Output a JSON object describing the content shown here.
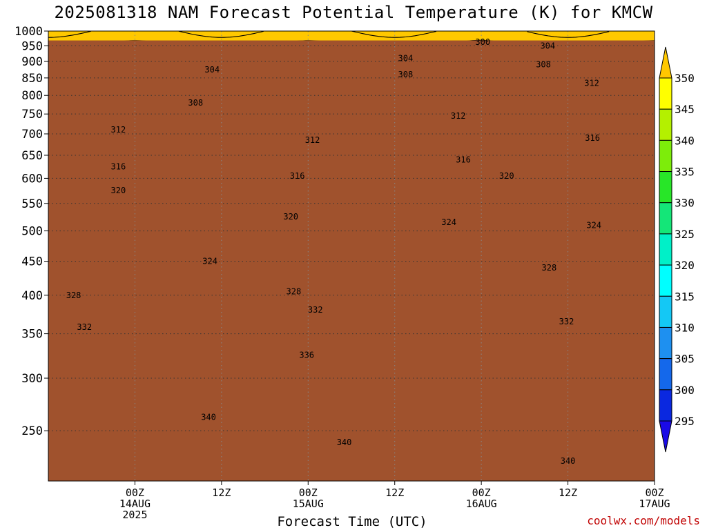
{
  "title": "2025081318 NAM Forecast Potential Temperature (K) for KMCW",
  "credit": "coolwx.com/models",
  "colors": {
    "ground": "#a0522d",
    "frame": "#000000",
    "grid": "#333333",
    "contour": "#000000"
  },
  "chart_data": {
    "type": "heatmap",
    "title": "2025081318 NAM Forecast Potential Temperature (K) for KMCW",
    "xlabel": "Forecast Time (UTC)",
    "ylabel": "",
    "x_unit": "hours since 2025-08-13 18Z",
    "xlim": [
      -6,
      78
    ],
    "ylim_pressure_hpa": [
      1000,
      210
    ],
    "y_scale": "log-pressure",
    "grid": true,
    "x_ticks": [
      {
        "x": 6,
        "lines": [
          "00Z",
          "14AUG",
          "2025"
        ]
      },
      {
        "x": 18,
        "lines": [
          "12Z"
        ]
      },
      {
        "x": 30,
        "lines": [
          "00Z",
          "15AUG"
        ]
      },
      {
        "x": 42,
        "lines": [
          "12Z"
        ]
      },
      {
        "x": 54,
        "lines": [
          "00Z",
          "16AUG"
        ]
      },
      {
        "x": 66,
        "lines": [
          "12Z"
        ]
      },
      {
        "x": 78,
        "lines": [
          "00Z",
          "17AUG"
        ]
      }
    ],
    "y_ticks": [
      250,
      300,
      350,
      400,
      450,
      500,
      550,
      600,
      650,
      700,
      750,
      800,
      850,
      900,
      950,
      1000
    ],
    "ground_pressure_hpa": 968,
    "colorbar": {
      "levels": [
        295,
        300,
        305,
        310,
        315,
        320,
        325,
        330,
        335,
        340,
        345,
        350
      ],
      "labels": [
        "295",
        "300",
        "305",
        "310",
        "315",
        "320",
        "325",
        "330",
        "335",
        "340",
        "345",
        "350"
      ],
      "colors": [
        "#1a0ae6",
        "#0a28e0",
        "#1468eb",
        "#1e90f0",
        "#14c8f5",
        "#00ffff",
        "#00f0c8",
        "#14e678",
        "#28e628",
        "#7ded0a",
        "#b4f000",
        "#ffff00",
        "#ffc800"
      ]
    },
    "contour_interval_K": 2,
    "contour_labels": [
      {
        "value": 340,
        "x": 16.2,
        "p": 262
      },
      {
        "value": 340,
        "x": 35,
        "p": 240
      },
      {
        "value": 340,
        "x": 66,
        "p": 225
      },
      {
        "value": 336,
        "x": 29.8,
        "p": 325
      },
      {
        "value": 332,
        "x": -1,
        "p": 358
      },
      {
        "value": 332,
        "x": 31,
        "p": 380
      },
      {
        "value": 332,
        "x": 65.8,
        "p": 365
      },
      {
        "value": 328,
        "x": -2.5,
        "p": 400
      },
      {
        "value": 328,
        "x": 28,
        "p": 405
      },
      {
        "value": 328,
        "x": 63.4,
        "p": 440
      },
      {
        "value": 324,
        "x": 16.4,
        "p": 450
      },
      {
        "value": 324,
        "x": 49.5,
        "p": 515
      },
      {
        "value": 324,
        "x": 69.6,
        "p": 510
      },
      {
        "value": 320,
        "x": 27.6,
        "p": 525
      },
      {
        "value": 320,
        "x": 3.7,
        "p": 575
      },
      {
        "value": 320,
        "x": 57.5,
        "p": 605
      },
      {
        "value": 316,
        "x": 3.7,
        "p": 625
      },
      {
        "value": 316,
        "x": 28.5,
        "p": 605
      },
      {
        "value": 316,
        "x": 51.5,
        "p": 640
      },
      {
        "value": 316,
        "x": 69.4,
        "p": 690
      },
      {
        "value": 312,
        "x": 3.7,
        "p": 710
      },
      {
        "value": 312,
        "x": 30.6,
        "p": 685
      },
      {
        "value": 312,
        "x": 50.8,
        "p": 745
      },
      {
        "value": 312,
        "x": 69.3,
        "p": 835
      },
      {
        "value": 308,
        "x": 14.4,
        "p": 780
      },
      {
        "value": 308,
        "x": 43.5,
        "p": 860
      },
      {
        "value": 308,
        "x": 62.6,
        "p": 890
      },
      {
        "value": 304,
        "x": 16.7,
        "p": 875
      },
      {
        "value": 304,
        "x": 43.5,
        "p": 910
      },
      {
        "value": 304,
        "x": 63.2,
        "p": 950
      },
      {
        "value": 300,
        "x": 54.2,
        "p": 962
      }
    ]
  }
}
